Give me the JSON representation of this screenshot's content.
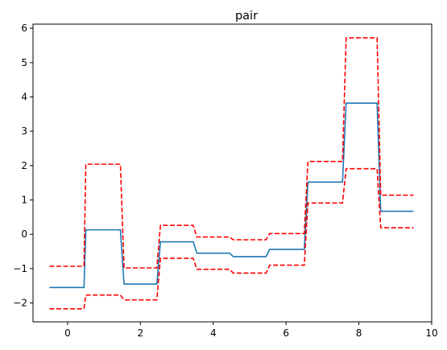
{
  "chart_data": {
    "type": "line",
    "title": "pair",
    "xlabel": "",
    "ylabel": "",
    "xlim": [
      -0.95,
      10.0
    ],
    "ylim": [
      -2.55,
      6.12
    ],
    "xticks": [
      0,
      2,
      4,
      6,
      8,
      10
    ],
    "yticks": [
      -2,
      -1,
      0,
      1,
      2,
      3,
      4,
      5,
      6
    ],
    "xtick_labels": [
      "0",
      "2",
      "4",
      "6",
      "8",
      "10"
    ],
    "ytick_labels": [
      "−2",
      "−1",
      "0",
      "1",
      "2",
      "3",
      "4",
      "5",
      "6"
    ],
    "grid": false,
    "series": [
      {
        "role": "mean",
        "color": "#1f77b4",
        "dashed": false,
        "x": [
          -0.5,
          0.45,
          0.5,
          1.45,
          1.55,
          2.45,
          2.55,
          3.45,
          3.55,
          4.45,
          4.55,
          5.45,
          5.55,
          6.5,
          6.6,
          7.55,
          7.65,
          8.5,
          8.6,
          9.5
        ],
        "y": [
          -1.55,
          -1.55,
          0.13,
          0.13,
          -1.45,
          -1.45,
          -0.22,
          -0.22,
          -0.55,
          -0.55,
          -0.65,
          -0.65,
          -0.44,
          -0.44,
          1.52,
          1.52,
          3.82,
          3.82,
          0.67,
          0.67
        ]
      },
      {
        "role": "upper",
        "color": "#ff0000",
        "dashed": true,
        "x": [
          -0.5,
          0.45,
          0.5,
          1.45,
          1.55,
          2.45,
          2.55,
          3.45,
          3.55,
          4.45,
          4.55,
          5.45,
          5.55,
          6.5,
          6.6,
          7.55,
          7.65,
          8.5,
          8.6,
          9.5
        ],
        "y": [
          -0.93,
          -0.93,
          2.04,
          2.04,
          -0.98,
          -0.98,
          0.26,
          0.26,
          -0.08,
          -0.08,
          -0.16,
          -0.16,
          0.02,
          0.02,
          2.12,
          2.12,
          5.72,
          5.72,
          1.14,
          1.14
        ]
      },
      {
        "role": "lower",
        "color": "#ff0000",
        "dashed": true,
        "x": [
          -0.5,
          0.45,
          0.5,
          1.45,
          1.55,
          2.45,
          2.55,
          3.45,
          3.55,
          4.45,
          4.55,
          5.45,
          5.55,
          6.5,
          6.6,
          7.55,
          7.65,
          8.5,
          8.6,
          9.5
        ],
        "y": [
          -2.17,
          -2.17,
          -1.77,
          -1.77,
          -1.91,
          -1.91,
          -0.7,
          -0.7,
          -1.02,
          -1.02,
          -1.13,
          -1.13,
          -0.9,
          -0.9,
          0.91,
          0.91,
          1.91,
          1.91,
          0.19,
          0.19
        ]
      }
    ]
  }
}
